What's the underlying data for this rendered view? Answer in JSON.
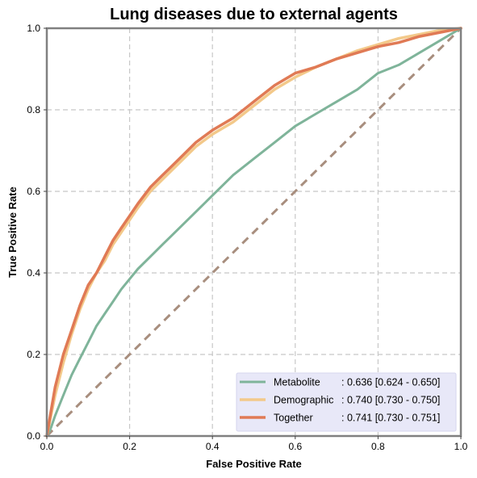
{
  "chart_data": {
    "type": "line",
    "title": "Lung diseases due to external agents",
    "xlabel": "False Positive Rate",
    "ylabel": "True Positive Rate",
    "xlim": [
      0,
      1
    ],
    "ylim": [
      0,
      1
    ],
    "x_ticks": [
      "0.0",
      "0.2",
      "0.4",
      "0.6",
      "0.8",
      "1.0"
    ],
    "y_ticks": [
      "0.0",
      "0.2",
      "0.4",
      "0.6",
      "0.8",
      "1.0"
    ],
    "grid": true,
    "legend_position": "bottom-right",
    "diagonal": {
      "x": [
        0,
        1
      ],
      "y": [
        0,
        1
      ],
      "color": "#a88e7e",
      "dashed": true
    },
    "series": [
      {
        "name": "Metabolite",
        "label_name": "Metabolite",
        "label_stats": ": 0.636 [0.624 - 0.650]",
        "color": "#7fb49a",
        "x": [
          0,
          0.01,
          0.02,
          0.04,
          0.06,
          0.08,
          0.1,
          0.12,
          0.14,
          0.16,
          0.18,
          0.2,
          0.22,
          0.25,
          0.28,
          0.3,
          0.33,
          0.36,
          0.4,
          0.45,
          0.5,
          0.55,
          0.6,
          0.65,
          0.7,
          0.75,
          0.8,
          0.85,
          0.9,
          0.95,
          1.0
        ],
        "y": [
          0,
          0.02,
          0.05,
          0.1,
          0.15,
          0.19,
          0.23,
          0.27,
          0.3,
          0.33,
          0.36,
          0.385,
          0.41,
          0.44,
          0.47,
          0.49,
          0.52,
          0.55,
          0.59,
          0.64,
          0.68,
          0.72,
          0.76,
          0.79,
          0.82,
          0.85,
          0.89,
          0.91,
          0.94,
          0.97,
          1.0
        ]
      },
      {
        "name": "Demographic",
        "label_name": "Demographic",
        "label_stats": ": 0.740 [0.730 - 0.750]",
        "color": "#f3c98a",
        "x": [
          0,
          0.01,
          0.02,
          0.04,
          0.06,
          0.08,
          0.1,
          0.12,
          0.14,
          0.16,
          0.18,
          0.2,
          0.22,
          0.25,
          0.28,
          0.3,
          0.33,
          0.36,
          0.4,
          0.45,
          0.5,
          0.55,
          0.6,
          0.65,
          0.7,
          0.75,
          0.8,
          0.85,
          0.9,
          0.95,
          1.0
        ],
        "y": [
          0,
          0.05,
          0.1,
          0.18,
          0.25,
          0.31,
          0.36,
          0.4,
          0.43,
          0.47,
          0.5,
          0.53,
          0.56,
          0.6,
          0.63,
          0.65,
          0.68,
          0.71,
          0.74,
          0.77,
          0.81,
          0.85,
          0.88,
          0.905,
          0.925,
          0.945,
          0.96,
          0.975,
          0.985,
          0.995,
          1.0
        ]
      },
      {
        "name": "Together",
        "label_name": "Together",
        "label_stats": ": 0.741 [0.730 - 0.751]",
        "color": "#e07a55",
        "x": [
          0,
          0.01,
          0.02,
          0.04,
          0.06,
          0.08,
          0.1,
          0.12,
          0.14,
          0.16,
          0.18,
          0.2,
          0.22,
          0.25,
          0.28,
          0.3,
          0.33,
          0.36,
          0.4,
          0.45,
          0.5,
          0.55,
          0.6,
          0.65,
          0.7,
          0.75,
          0.8,
          0.85,
          0.9,
          0.95,
          1.0
        ],
        "y": [
          0,
          0.06,
          0.12,
          0.2,
          0.26,
          0.32,
          0.37,
          0.4,
          0.44,
          0.48,
          0.51,
          0.54,
          0.57,
          0.61,
          0.64,
          0.66,
          0.69,
          0.72,
          0.75,
          0.78,
          0.82,
          0.86,
          0.89,
          0.905,
          0.925,
          0.94,
          0.955,
          0.965,
          0.98,
          0.99,
          1.0
        ]
      }
    ]
  }
}
